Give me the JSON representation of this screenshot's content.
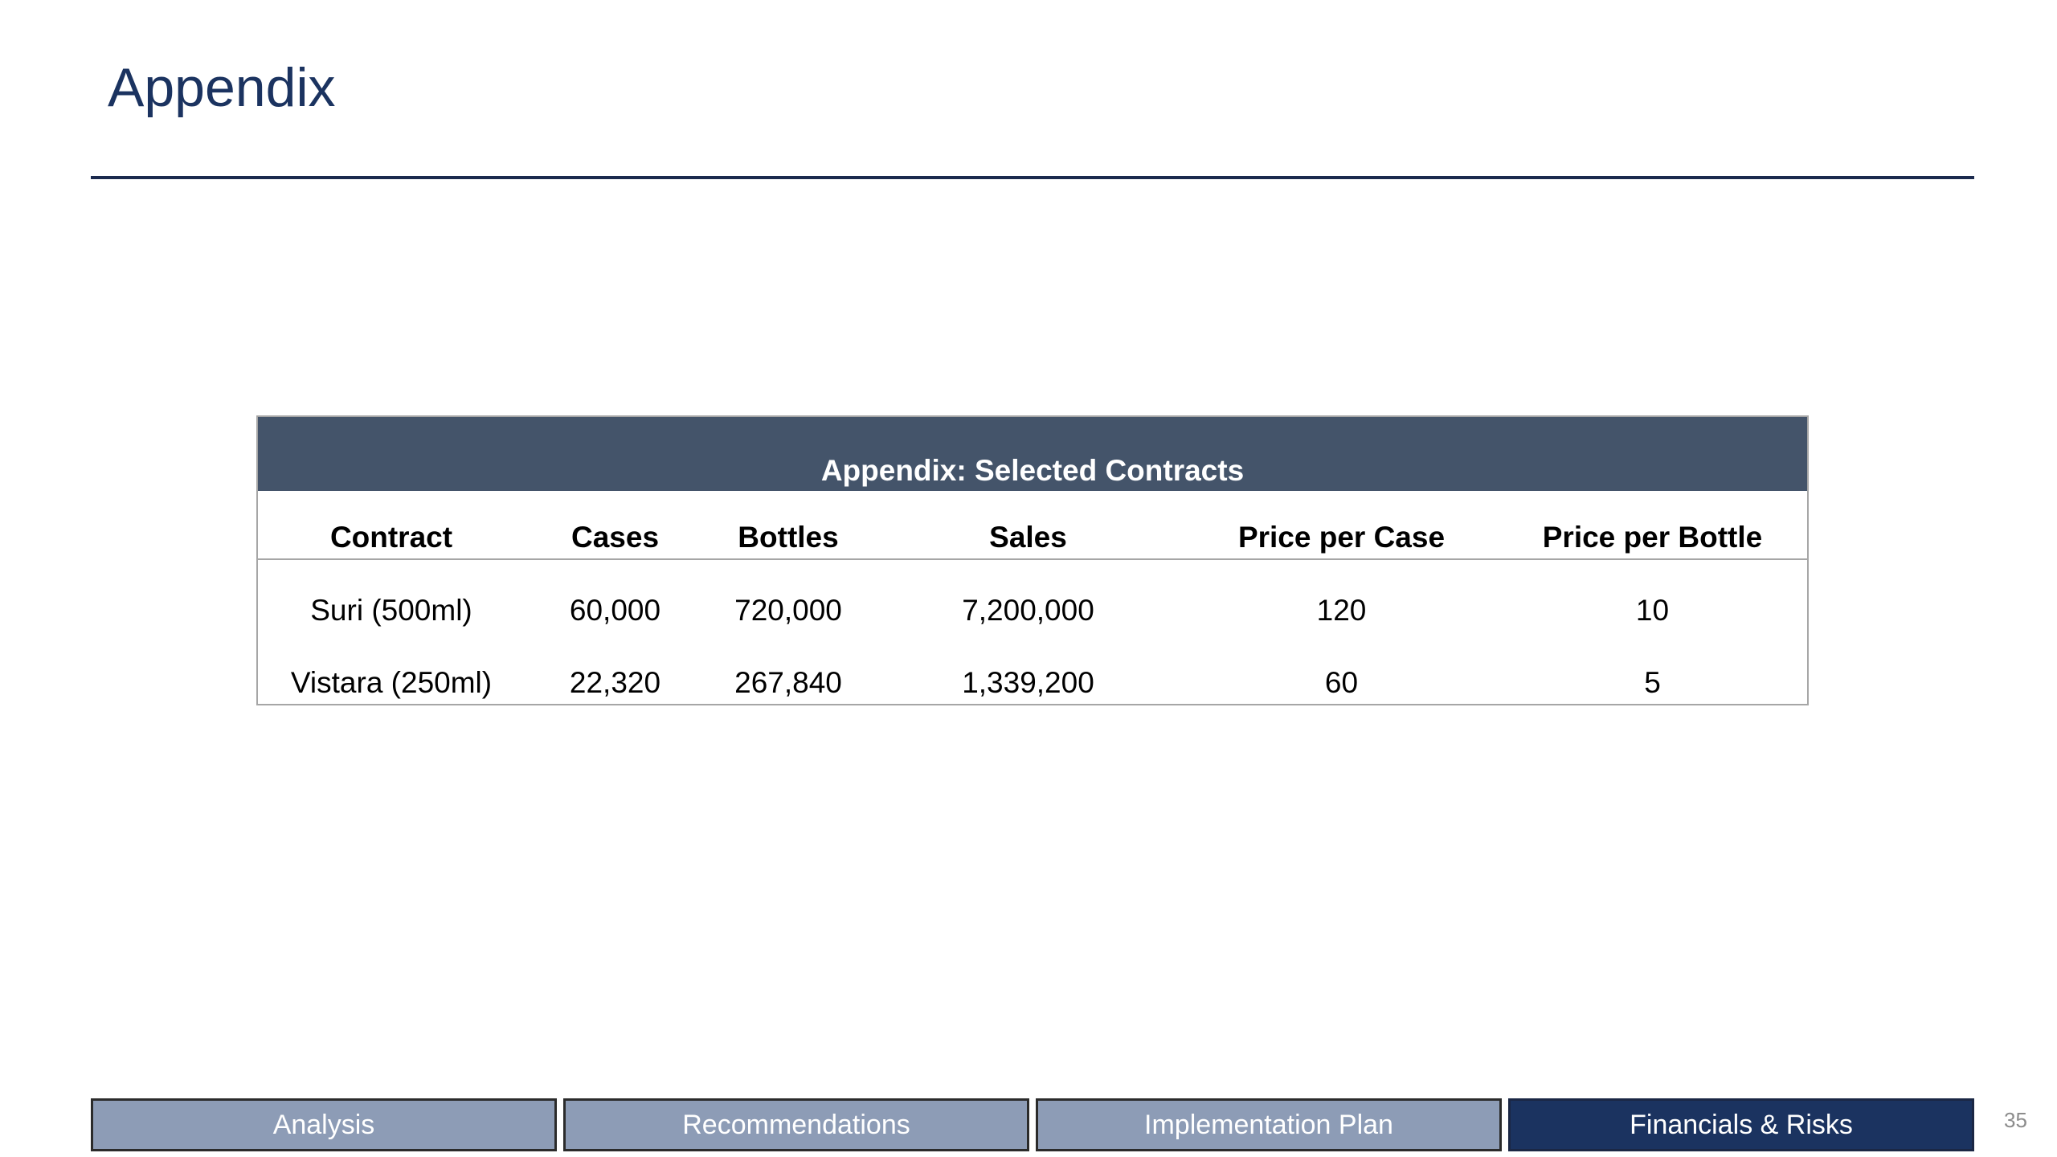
{
  "slide": {
    "title": "Appendix",
    "page_number": "35"
  },
  "table": {
    "caption": "Appendix: Selected Contracts",
    "columns": [
      "Contract",
      "Cases",
      "Bottles",
      "Sales",
      "Price per Case",
      "Price per Bottle"
    ],
    "rows": [
      [
        "Suri (500ml)",
        "60,000",
        "720,000",
        "7,200,000",
        "120",
        "10"
      ],
      [
        "Vistara (250ml)",
        "22,320",
        "267,840",
        "1,339,200",
        "60",
        "5"
      ]
    ]
  },
  "nav": {
    "tabs": [
      {
        "label": "Analysis",
        "active": false
      },
      {
        "label": "Recommendations",
        "active": false
      },
      {
        "label": "Implementation Plan",
        "active": false
      },
      {
        "label": "Financials & Risks",
        "active": true
      }
    ]
  },
  "colors": {
    "title": "#1b3360",
    "caption_bg": "#44546a",
    "nav_inactive": "#8d9cb6",
    "nav_active": "#1b3360"
  }
}
